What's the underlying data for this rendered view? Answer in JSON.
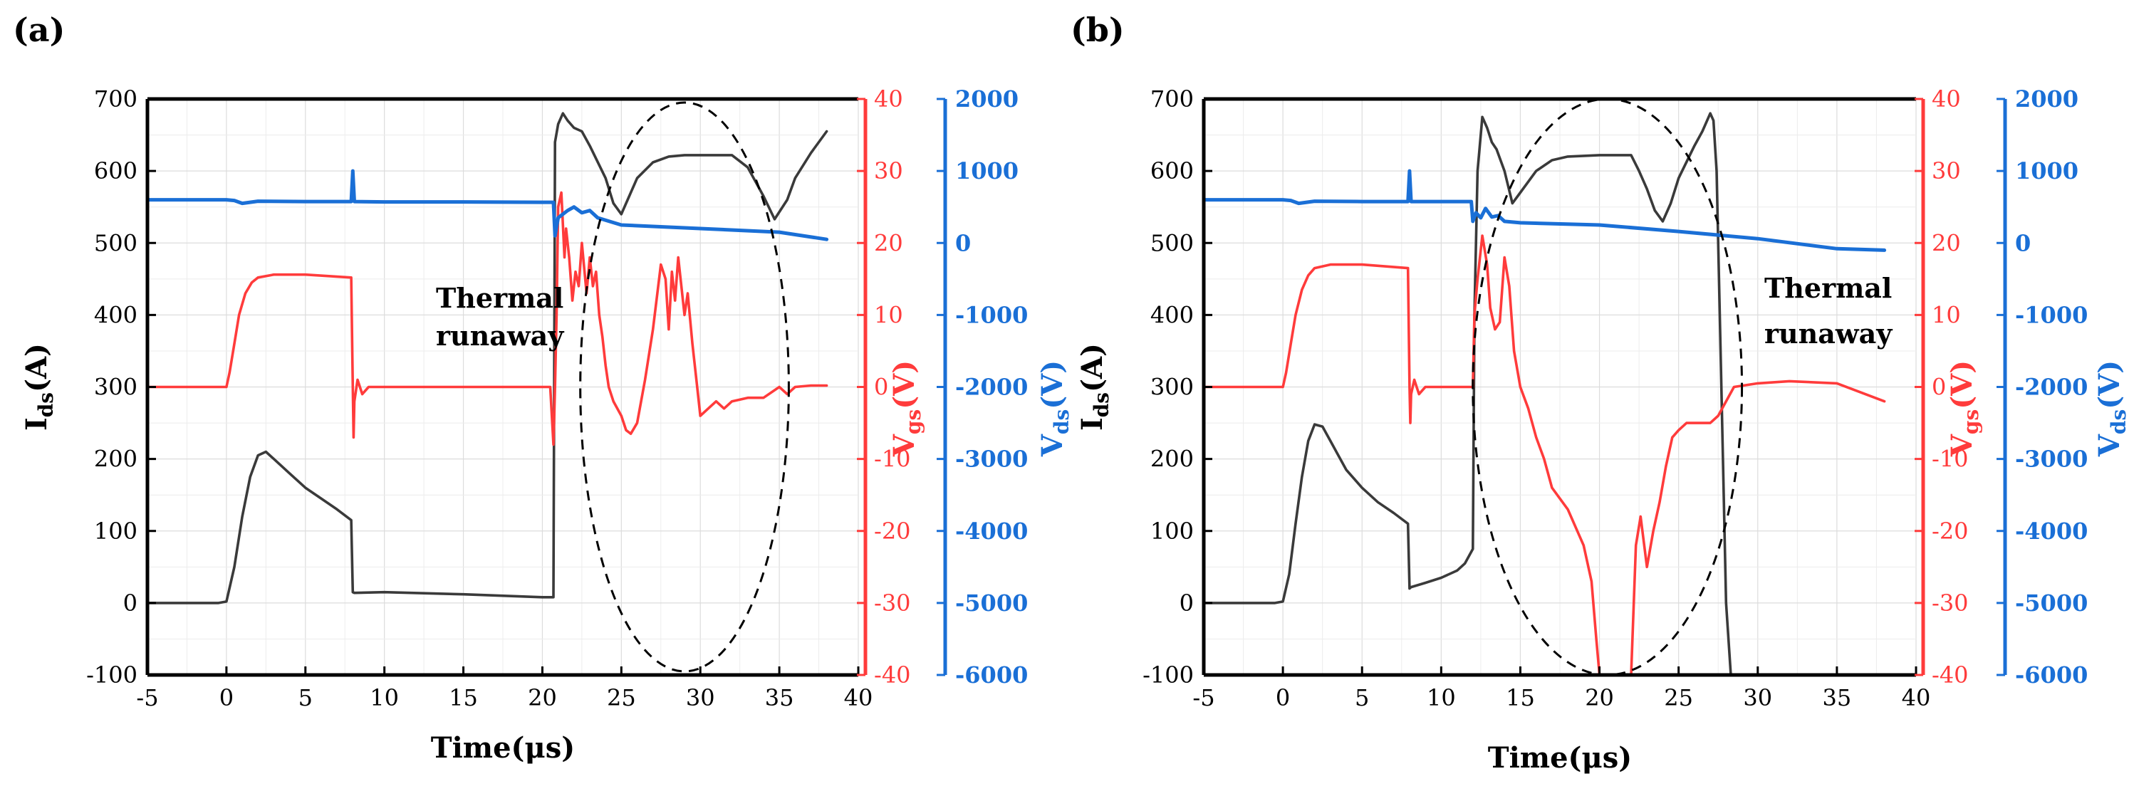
{
  "chart_data": [
    {
      "type": "line",
      "panel_label": "(a)",
      "xlabel": "Time(μs)",
      "ylabel_left": "I",
      "ylabel_left_sub": "ds",
      "ylabel_left_unit": "(A)",
      "ylabel_vgs": "V",
      "ylabel_vgs_sub": "gs",
      "ylabel_vgs_unit": "(V)",
      "ylabel_vds": "V",
      "ylabel_vds_sub": "ds",
      "ylabel_vds_unit": "(V)",
      "xlim": [
        -5,
        40
      ],
      "xticks": [
        "-5",
        "0",
        "5",
        "10",
        "15",
        "20",
        "25",
        "30",
        "35",
        "40"
      ],
      "ylim_ids": [
        -100,
        700
      ],
      "yticks_ids": [
        "-100",
        "0",
        "100",
        "200",
        "300",
        "400",
        "500",
        "600",
        "700"
      ],
      "ylim_vgs": [
        -40,
        40
      ],
      "yticks_vgs": [
        "-40",
        "-30",
        "-20",
        "-10",
        "0",
        "10",
        "20",
        "30",
        "40"
      ],
      "ylim_vds": [
        -6000,
        2000
      ],
      "yticks_vds": [
        "-6000",
        "-5000",
        "-4000",
        "-3000",
        "-2000",
        "-1000",
        "0",
        "1000",
        "2000"
      ],
      "annotation_line1": "Thermal",
      "annotation_line2": "runaway",
      "colors": {
        "ids": "#3a3a3a",
        "vgs": "#ff3b3b",
        "vds": "#1a6fd6",
        "axis_black": "#000000"
      },
      "series": [
        {
          "name": "Ids",
          "axis": "ids",
          "x": [
            -5,
            -0.5,
            0,
            0.5,
            1,
            1.5,
            2,
            2.5,
            3,
            4,
            5,
            6,
            7,
            7.9,
            8,
            8.1,
            10,
            15,
            20,
            20.7,
            20.8,
            21.0,
            21.3,
            21.6,
            22,
            22.5,
            23,
            24,
            24.5,
            25,
            25.5,
            26,
            27,
            28,
            29,
            30,
            31,
            32,
            33,
            34,
            34.7,
            35.5,
            36,
            37,
            38
          ],
          "y": [
            0,
            0,
            2,
            50,
            120,
            175,
            205,
            210,
            200,
            180,
            160,
            145,
            130,
            115,
            15,
            14,
            15,
            12,
            8,
            8,
            640,
            665,
            680,
            670,
            660,
            655,
            635,
            590,
            555,
            540,
            565,
            590,
            612,
            620,
            622,
            622,
            622,
            622,
            605,
            565,
            533,
            560,
            590,
            625,
            655
          ]
        },
        {
          "name": "Vgs",
          "axis": "vgs",
          "x": [
            -5,
            0,
            0.2,
            0.5,
            0.8,
            1.2,
            1.6,
            2,
            3,
            5,
            7.9,
            8,
            8.05,
            8.1,
            8.3,
            8.6,
            9,
            12,
            15,
            20.5,
            20.7,
            20.8,
            20.9,
            21.0,
            21.2,
            21.4,
            21.5,
            21.7,
            21.9,
            22.1,
            22.3,
            22.5,
            22.8,
            23.0,
            23.2,
            23.4,
            23.6,
            23.8,
            24.0,
            24.2,
            24.5,
            25.0,
            25.3,
            25.6,
            26.0,
            26.5,
            27.0,
            27.5,
            27.8,
            28.0,
            28.2,
            28.4,
            28.6,
            28.8,
            29.0,
            29.2,
            29.5,
            29.8,
            30.0,
            30.5,
            31.0,
            31.5,
            32,
            33,
            34,
            35,
            35.5,
            36,
            37,
            38
          ],
          "y": [
            0,
            0,
            2,
            6,
            10,
            13,
            14.5,
            15.2,
            15.6,
            15.6,
            15.2,
            0,
            -7,
            -2,
            1,
            -1,
            0,
            0,
            0,
            0,
            -8,
            0,
            10,
            25,
            27,
            18,
            22,
            18,
            12,
            16,
            14,
            20,
            13,
            18,
            14,
            16,
            10,
            7,
            3,
            0,
            -2,
            -4,
            -6,
            -6.5,
            -5,
            1,
            8,
            17,
            15,
            8,
            16,
            12,
            18,
            14,
            10,
            13,
            6,
            0,
            -4,
            -3,
            -2,
            -3,
            -2,
            -1.5,
            -1.5,
            0,
            -1,
            0,
            0.2,
            0.2
          ]
        },
        {
          "name": "Vds",
          "axis": "vds",
          "x": [
            -5,
            0,
            0.5,
            1,
            2,
            5,
            7.9,
            8,
            8.1,
            10,
            15,
            20,
            20.7,
            20.8,
            21,
            21.3,
            21.6,
            22,
            22.5,
            23,
            23.5,
            25,
            30,
            35,
            38
          ],
          "y": [
            600,
            600,
            590,
            550,
            580,
            575,
            575,
            1000,
            575,
            570,
            570,
            565,
            565,
            100,
            350,
            400,
            450,
            500,
            420,
            450,
            350,
            250,
            200,
            150,
            50
          ]
        }
      ],
      "ellipse_center": [
        29,
        300
      ],
      "ellipse_radii": [
        6.6,
        395
      ]
    },
    {
      "type": "line",
      "panel_label": "(b)",
      "xlabel": "Time(μs)",
      "ylabel_left": "I",
      "ylabel_left_sub": "ds",
      "ylabel_left_unit": "(A)",
      "ylabel_vgs": "V",
      "ylabel_vgs_sub": "gs",
      "ylabel_vgs_unit": "(V)",
      "ylabel_vds": "V",
      "ylabel_vds_sub": "ds",
      "ylabel_vds_unit": "(V)",
      "xlim": [
        -5,
        40
      ],
      "xticks": [
        "-5",
        "0",
        "5",
        "10",
        "15",
        "20",
        "25",
        "30",
        "35",
        "40"
      ],
      "ylim_ids": [
        -100,
        700
      ],
      "yticks_ids": [
        "-100",
        "0",
        "100",
        "200",
        "300",
        "400",
        "500",
        "600",
        "700"
      ],
      "ylim_vgs": [
        -40,
        40
      ],
      "yticks_vgs": [
        "-40",
        "-30",
        "-20",
        "-10",
        "0",
        "10",
        "20",
        "30",
        "40"
      ],
      "ylim_vds": [
        -6000,
        2000
      ],
      "yticks_vds": [
        "-6000",
        "-5000",
        "-4000",
        "-3000",
        "-2000",
        "-1000",
        "0",
        "1000",
        "2000"
      ],
      "annotation_line1": "Thermal",
      "annotation_line2": "runaway",
      "colors": {
        "ids": "#3a3a3a",
        "vgs": "#ff3b3b",
        "vds": "#1a6fd6",
        "axis_black": "#000000"
      },
      "series": [
        {
          "name": "Ids",
          "axis": "ids",
          "x": [
            -5,
            -0.5,
            0,
            0.4,
            0.8,
            1.2,
            1.6,
            2,
            2.5,
            3,
            4,
            5,
            6,
            7,
            7.9,
            8,
            8.1,
            9,
            10,
            11,
            11.5,
            12,
            12.1,
            12.3,
            12.6,
            12.9,
            13.2,
            13.5,
            14,
            14.5,
            15,
            16,
            17,
            18,
            20,
            22,
            22.5,
            23,
            23.5,
            24,
            24.5,
            25,
            26,
            26.5,
            27,
            27.2,
            27.4,
            27.7,
            28.0,
            28.3,
            28.5
          ],
          "y": [
            0,
            0,
            2,
            40,
            110,
            175,
            225,
            248,
            245,
            225,
            185,
            160,
            140,
            125,
            110,
            20,
            22,
            28,
            35,
            45,
            55,
            75,
            400,
            600,
            675,
            660,
            640,
            630,
            600,
            555,
            570,
            600,
            615,
            620,
            622,
            622,
            600,
            575,
            545,
            530,
            555,
            590,
            635,
            655,
            680,
            670,
            600,
            300,
            0,
            -100,
            -100
          ]
        },
        {
          "name": "Vgs",
          "axis": "vgs",
          "x": [
            -5,
            0,
            0.2,
            0.5,
            0.8,
            1.2,
            1.6,
            2,
            3,
            5,
            7.9,
            8,
            8.05,
            8.1,
            8.3,
            8.6,
            9,
            10,
            11.9,
            12.0,
            12.1,
            12.3,
            12.6,
            12.9,
            13.1,
            13.4,
            13.7,
            14.0,
            14.3,
            14.6,
            15.0,
            15.5,
            16.0,
            16.5,
            17.0,
            18.0,
            19.0,
            19.5,
            19.8,
            20.0,
            20.5,
            21.5,
            22.0,
            22.3,
            22.6,
            23.0,
            23.4,
            23.8,
            24.2,
            24.6,
            25.0,
            25.5,
            26.0,
            26.5,
            27.0,
            27.5,
            28.0,
            28.5,
            30,
            32,
            35,
            38
          ],
          "y": [
            0,
            0,
            2,
            6,
            10,
            13.5,
            15.5,
            16.5,
            17,
            17,
            16.5,
            0,
            -5,
            -1,
            1,
            -1,
            0,
            0,
            0,
            0,
            10,
            15,
            21,
            17,
            11,
            8,
            9,
            18,
            14,
            5,
            0,
            -3,
            -7,
            -10,
            -14,
            -17,
            -22,
            -27,
            -35,
            -40,
            -40,
            -40,
            -40,
            -22,
            -18,
            -25,
            -20,
            -16,
            -11,
            -7,
            -6,
            -5,
            -5,
            -5,
            -5,
            -4,
            -2,
            0,
            0.5,
            0.8,
            0.5,
            -2
          ]
        },
        {
          "name": "Vds",
          "axis": "vds",
          "x": [
            -5,
            0,
            0.5,
            1,
            2,
            5,
            7.9,
            8,
            8.1,
            10,
            11.9,
            12.0,
            12.2,
            12.5,
            12.8,
            13.2,
            13.6,
            14,
            15,
            20,
            25,
            30,
            35,
            38
          ],
          "y": [
            600,
            600,
            590,
            550,
            580,
            575,
            575,
            1000,
            575,
            575,
            575,
            300,
            420,
            350,
            480,
            360,
            380,
            300,
            280,
            250,
            160,
            60,
            -80,
            -100
          ]
        }
      ],
      "ellipse_center": [
        20.5,
        300
      ],
      "ellipse_radii": [
        8.5,
        400
      ]
    }
  ]
}
